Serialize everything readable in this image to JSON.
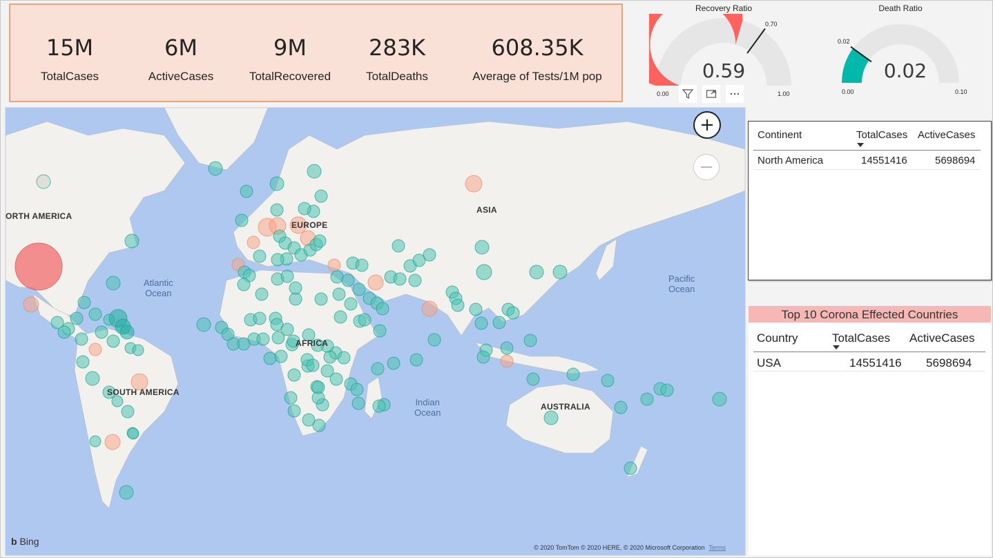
{
  "kpis": [
    {
      "value": "15M",
      "label": "TotalCases"
    },
    {
      "value": "6M",
      "label": "ActiveCases"
    },
    {
      "value": "9M",
      "label": "TotalRecovered"
    },
    {
      "value": "283K",
      "label": "TotalDeaths"
    },
    {
      "value": "608.35K",
      "label": "Average of Tests/1M pop"
    }
  ],
  "recovery_gauge": {
    "title": "Recovery Ratio",
    "value": "0.59",
    "min": "0.00",
    "max": "1.00",
    "target": "0.70",
    "fill_fraction": 0.59,
    "target_fraction": 0.7,
    "color": "#fd625e"
  },
  "death_gauge": {
    "title": "Death Ratio",
    "value": "0.02",
    "min": "0.00",
    "max": "0.10",
    "target": "0.02",
    "fill_fraction": 0.2,
    "target_fraction": 0.2,
    "color": "#01b8aa"
  },
  "visual_header": {
    "icons": [
      "filter-icon",
      "focus-mode-icon",
      "more-options-icon"
    ]
  },
  "map": {
    "labels": {
      "north_america": "ORTH AMERICA",
      "europe": "EUROPE",
      "asia": "ASIA",
      "africa": "AFRICA",
      "south_america": "SOUTH AMERICA",
      "australia": "AUSTRALIA"
    },
    "oceans": {
      "atlantic": "Atlantic\nOcean",
      "indian": "Indian\nOcean",
      "pacific": "Pacific\nOcean"
    },
    "zoom_in": "+",
    "zoom_out": "−",
    "bing": "Bing",
    "copyright": "© 2020 TomTom © 2020 HERE, © 2020 Microsoft Corporation",
    "terms": "Terms"
  },
  "continent_table": {
    "columns": [
      "Continent",
      "TotalCases",
      "ActiveCases"
    ],
    "rows": [
      [
        "North America",
        "14551416",
        "5698694"
      ]
    ]
  },
  "top10": {
    "title": "Top 10 Corona Effected Countries",
    "columns": [
      "Country",
      "TotalCases",
      "ActiveCases"
    ],
    "rows": [
      [
        "USA",
        "14551416",
        "5698694"
      ]
    ]
  },
  "colors": {
    "kpi_bg": "#fae1d8",
    "kpi_border": "#f5a070",
    "bubble_teal": "#4fc3b3",
    "bubble_salmon": "#f7a58a",
    "bubble_red": "#f26d6d",
    "ocean": "#aec8f0",
    "land": "#f2f1ee",
    "banner": "#f7b8b5"
  }
}
